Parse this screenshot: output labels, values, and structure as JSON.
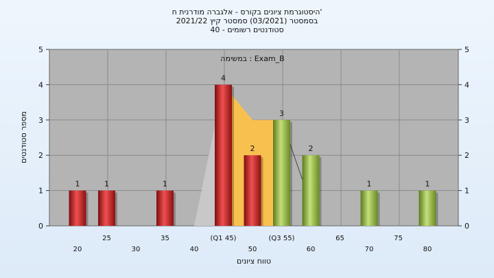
{
  "chart_data": {
    "type": "bar",
    "title_lines": [
      "היסטוגרמת ציונים בקורס - אלגברה מודרנית ח'",
      "בסמסטר  (03/2021)  סמסטר קיץ  2021/22",
      "סטודנטים רשומים - 40"
    ],
    "annotation": "במשימה : Exam_B",
    "xlabel": "טווח ציונים",
    "ylabel": "מספר סטודנטים",
    "ylim": [
      0,
      5
    ],
    "yticks": [
      0,
      1,
      2,
      3,
      4,
      5
    ],
    "x_tick_labels": [
      {
        "x": 20,
        "label": "20",
        "row": 1
      },
      {
        "x": 25,
        "label": "25",
        "row": 0
      },
      {
        "x": 30,
        "label": "30",
        "row": 1
      },
      {
        "x": 35,
        "label": "35",
        "row": 0
      },
      {
        "x": 40,
        "label": "40",
        "row": 1
      },
      {
        "x": 45,
        "label": "(Q1 45)",
        "row": 0
      },
      {
        "x": 50,
        "label": "50",
        "row": 1
      },
      {
        "x": 55,
        "label": "(Q3 55)",
        "row": 0
      },
      {
        "x": 60,
        "label": "60",
        "row": 1
      },
      {
        "x": 65,
        "label": "65",
        "row": 0
      },
      {
        "x": 70,
        "label": "70",
        "row": 1
      },
      {
        "x": 75,
        "label": "75",
        "row": 0
      },
      {
        "x": 80,
        "label": "80",
        "row": 1
      }
    ],
    "bars": [
      {
        "x": 20,
        "value": 1,
        "color": "red"
      },
      {
        "x": 25,
        "value": 1,
        "color": "red"
      },
      {
        "x": 35,
        "value": 1,
        "color": "red"
      },
      {
        "x": 45,
        "value": 4,
        "color": "red"
      },
      {
        "x": 50,
        "value": 2,
        "color": "red"
      },
      {
        "x": 55,
        "value": 3,
        "color": "green"
      },
      {
        "x": 60,
        "value": 2,
        "color": "green"
      },
      {
        "x": 70,
        "value": 1,
        "color": "green"
      },
      {
        "x": 80,
        "value": 1,
        "color": "green"
      }
    ],
    "colors": {
      "plot_bg": "#b4b4b4",
      "grid": "#8a8a8a",
      "red": "#e02424",
      "green": "#9cc44a",
      "iqr_fill": "#f8c04e",
      "tail_fill": "#c8c8c8"
    }
  }
}
